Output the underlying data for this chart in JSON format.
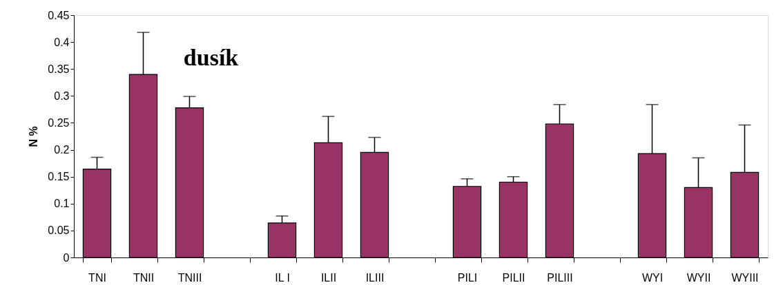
{
  "chart_data": {
    "type": "bar",
    "title": "dusík",
    "ylabel": "N %",
    "categories": [
      "TNI",
      "TNII",
      "TNIII",
      null,
      "IL I",
      "ILII",
      "ILIII",
      null,
      "PILI",
      "PILII",
      "PILIII",
      null,
      "WYI",
      "WYII",
      "WYIII"
    ],
    "values": [
      0.164,
      0.34,
      0.278,
      null,
      0.064,
      0.213,
      0.195,
      null,
      0.132,
      0.14,
      0.248,
      null,
      0.193,
      0.13,
      0.158
    ],
    "errors": [
      [
        0.164,
        0.186
      ],
      [
        0.34,
        0.418
      ],
      [
        0.278,
        0.299
      ],
      null,
      [
        0.064,
        0.077
      ],
      [
        0.213,
        0.262
      ],
      [
        0.195,
        0.223
      ],
      null,
      [
        0.132,
        0.146
      ],
      [
        0.14,
        0.15
      ],
      [
        0.248,
        0.284
      ],
      null,
      [
        0.193,
        0.284
      ],
      [
        0.13,
        0.185
      ],
      [
        0.158,
        0.246
      ]
    ],
    "color": "#993366",
    "ylim": [
      0,
      0.45
    ],
    "yticks": [
      0,
      0.05,
      0.1,
      0.15,
      0.2,
      0.25,
      0.3,
      0.35,
      0.4,
      0.45
    ],
    "grid": false
  }
}
